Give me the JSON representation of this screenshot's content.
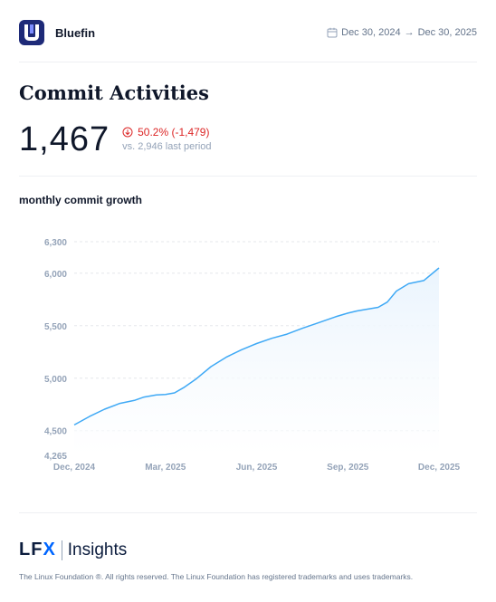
{
  "header": {
    "project_name": "Bluefin",
    "date_start": "Dec 30, 2024",
    "date_arrow": "→",
    "date_end": "Dec 30, 2025"
  },
  "page_title": "Commit Activities",
  "kpi": {
    "value": "1,467",
    "delta": "50.2% (-1,479)",
    "comparison": "vs. 2,946 last period",
    "delta_color": "#dc2626"
  },
  "chart_section_title": "monthly commit growth",
  "chart_data": {
    "type": "area",
    "title": "",
    "xlabel": "",
    "ylabel": "",
    "ylim": [
      4265,
      6300
    ],
    "yticks": [
      6300,
      6000,
      5500,
      5000,
      4500,
      4265
    ],
    "ytick_labels": [
      "6,300",
      "6,000",
      "5,500",
      "5,000",
      "4,500",
      "4,265"
    ],
    "xtick_labels": [
      "Dec, 2024",
      "Mar, 2025",
      "Jun, 2025",
      "Sep, 2025",
      "Dec, 2025"
    ],
    "xtick_positions": [
      0,
      3,
      6,
      9,
      12
    ],
    "grid": true,
    "line_color": "#3fa9f5",
    "fill_color": "#eaf4fd",
    "series": [
      {
        "x": [
          0,
          0.5,
          1,
          1.5,
          2,
          2.3,
          2.7,
          3,
          3.3,
          3.6,
          4,
          4.5,
          5,
          5.5,
          6,
          6.5,
          7,
          7.5,
          8,
          8.3,
          8.6,
          9,
          9.3,
          9.6,
          10,
          10.3,
          10.6,
          11,
          11.5,
          12
        ],
        "y": [
          4555,
          4635,
          4705,
          4760,
          4790,
          4820,
          4840,
          4845,
          4860,
          4910,
          4990,
          5110,
          5200,
          5270,
          5330,
          5380,
          5420,
          5475,
          5525,
          5555,
          5585,
          5620,
          5640,
          5655,
          5675,
          5725,
          5830,
          5900,
          5930,
          6050
        ]
      }
    ]
  },
  "footer": {
    "logo_text_lf": "LF",
    "logo_text_x": "X",
    "logo_text_insights": "Insights",
    "copyright": "The Linux Foundation ®. All rights reserved. The Linux Foundation has registered trademarks and uses trademarks."
  }
}
